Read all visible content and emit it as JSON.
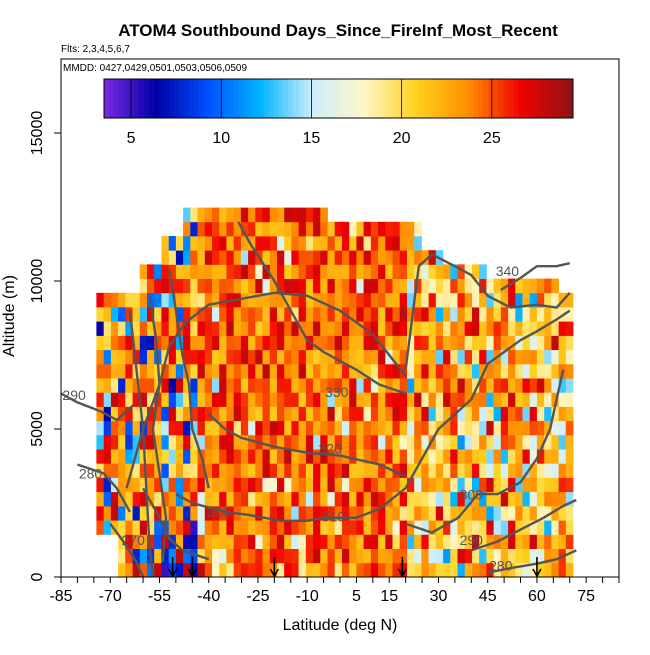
{
  "chart_data": {
    "type": "heatmap",
    "title": "ATOM4 Southbound Days_Since_FireInf_Most_Recent",
    "subtitle": "Flts: 2,3,4,5,6,7",
    "annotation": "MMDD: 0427,0429,0501,0503,0506,0509",
    "xlabel": "Latitude (deg N)",
    "ylabel": "Altitude (m)",
    "xlim": [
      -85,
      85
    ],
    "ylim": [
      0,
      17500
    ],
    "x_ticks": [
      -85,
      -70,
      -55,
      -40,
      -25,
      -10,
      5,
      15,
      30,
      45,
      60,
      75
    ],
    "y_ticks": [
      0,
      5000,
      10000,
      15000
    ],
    "colorbar": {
      "range": [
        3.5,
        29.5
      ],
      "ticks": [
        5,
        10,
        15,
        20,
        25
      ],
      "colors": [
        "#7a2be0",
        "#0000a8",
        "#0050ff",
        "#00b4ff",
        "#cdeffd",
        "#fff6c8",
        "#ffd21e",
        "#ff8c00",
        "#f00000",
        "#8c1414"
      ]
    },
    "grid": false,
    "legend": "none",
    "contour_labels": [
      {
        "text": "340",
        "x": 51,
        "y": 10300
      },
      {
        "text": "330",
        "x": -1,
        "y": 6200
      },
      {
        "text": "320",
        "x": -3,
        "y": 4300
      },
      {
        "text": "310",
        "x": -2,
        "y": 2000
      },
      {
        "text": "300",
        "x": -37,
        "y": 2150
      },
      {
        "text": "300",
        "x": 40,
        "y": 2750
      },
      {
        "text": "290",
        "x": -81,
        "y": 6100
      },
      {
        "text": "290",
        "x": 40,
        "y": 1200
      },
      {
        "text": "280",
        "x": -76,
        "y": 3450
      },
      {
        "text": "280",
        "x": 49,
        "y": 350
      },
      {
        "text": "270",
        "x": -63,
        "y": 1200
      }
    ],
    "flight_markers_lat": [
      -51,
      -45,
      -20,
      19,
      60
    ]
  }
}
